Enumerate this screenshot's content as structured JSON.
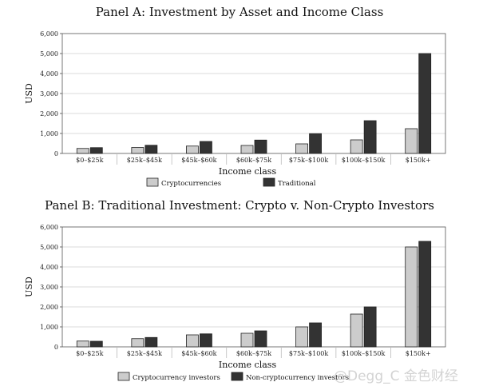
{
  "chart_data": [
    {
      "type": "bar",
      "title": "Panel A: Investment by Asset and Income Class",
      "xlabel": "Income class",
      "ylabel": "USD",
      "ylim": [
        0,
        6000
      ],
      "yticks": [
        0,
        1000,
        2000,
        3000,
        4000,
        5000,
        6000
      ],
      "ytick_labels": [
        "0",
        "1,000",
        "2,000",
        "3,000",
        "4,000",
        "5,000",
        "6,000"
      ],
      "grid": true,
      "legend_position": "bottom",
      "categories": [
        "$0–$25k",
        "$25k–$45k",
        "$45k–$60k",
        "$60k–$75k",
        "$75k–$100k",
        "$100k–$150k",
        "$150k+"
      ],
      "series": [
        {
          "name": "Cryptocurrencies",
          "color": "#cccccc",
          "values": [
            250,
            300,
            370,
            400,
            480,
            680,
            1240
          ]
        },
        {
          "name": "Traditional",
          "color": "#333333",
          "values": [
            290,
            410,
            600,
            670,
            990,
            1640,
            5000
          ]
        }
      ]
    },
    {
      "type": "bar",
      "title": "Panel B: Traditional Investment: Crypto v. Non-Crypto Investors",
      "xlabel": "Income class",
      "ylabel": "USD",
      "ylim": [
        0,
        6000
      ],
      "yticks": [
        0,
        1000,
        2000,
        3000,
        4000,
        5000,
        6000
      ],
      "ytick_labels": [
        "0",
        "1,000",
        "2,000",
        "3,000",
        "4,000",
        "5,000",
        "6,000"
      ],
      "grid": true,
      "legend_position": "bottom",
      "categories": [
        "$0–$25k",
        "$25k–$45k",
        "$45k–$60k",
        "$60k–$75k",
        "$75k–$100k",
        "$100k–$150k",
        "$150k+"
      ],
      "series": [
        {
          "name": "Cryptocurrency investors",
          "color": "#cccccc",
          "values": [
            290,
            410,
            600,
            680,
            1000,
            1640,
            5000
          ]
        },
        {
          "name": "Non-cryptocurrency investors",
          "color": "#333333",
          "values": [
            280,
            470,
            650,
            800,
            1200,
            2000,
            5280
          ]
        }
      ]
    }
  ],
  "watermark": "@Degg_C 金色财经"
}
